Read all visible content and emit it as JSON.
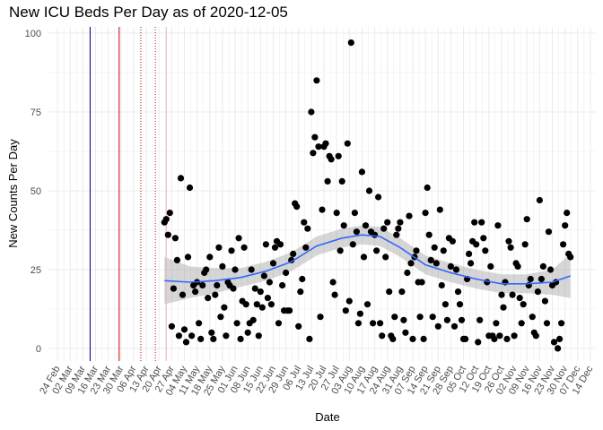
{
  "chart_data": {
    "type": "scatter",
    "title": "New ICU Beds Per Day as of 2020-12-05",
    "xlabel": "Date",
    "ylabel": "New Counts Per Day",
    "xlim": [
      "2020-02-19",
      "2020-12-17"
    ],
    "ylim": [
      -4,
      102
    ],
    "x_ticks": [
      "24 Feb",
      "02 Mar",
      "09 Mar",
      "16 Mar",
      "23 Mar",
      "30 Mar",
      "06 Apr",
      "13 Apr",
      "20 Apr",
      "27 Apr",
      "04 May",
      "11 May",
      "18 May",
      "25 May",
      "01 Jun",
      "08 Jun",
      "15 Jun",
      "22 Jun",
      "29 Jun",
      "06 Jul",
      "13 Jul",
      "20 Jul",
      "27 Jul",
      "03 Aug",
      "10 Aug",
      "17 Aug",
      "24 Aug",
      "31 Aug",
      "07 Sep",
      "14 Sep",
      "21 Sep",
      "28 Sep",
      "05 Oct",
      "12 Oct",
      "19 Oct",
      "26 Oct",
      "02 Nov",
      "09 Nov",
      "16 Nov",
      "23 Nov",
      "30 Nov",
      "07 Dec",
      "14 Dec"
    ],
    "x_tick_dates": [
      "2020-02-24",
      "2020-03-02",
      "2020-03-09",
      "2020-03-16",
      "2020-03-23",
      "2020-03-30",
      "2020-04-06",
      "2020-04-13",
      "2020-04-20",
      "2020-04-27",
      "2020-05-04",
      "2020-05-11",
      "2020-05-18",
      "2020-05-25",
      "2020-06-01",
      "2020-06-08",
      "2020-06-15",
      "2020-06-22",
      "2020-06-29",
      "2020-07-06",
      "2020-07-13",
      "2020-07-20",
      "2020-07-27",
      "2020-08-03",
      "2020-08-10",
      "2020-08-17",
      "2020-08-24",
      "2020-08-31",
      "2020-09-07",
      "2020-09-14",
      "2020-09-21",
      "2020-09-28",
      "2020-10-05",
      "2020-10-12",
      "2020-10-19",
      "2020-10-26",
      "2020-11-02",
      "2020-11-09",
      "2020-11-16",
      "2020-11-23",
      "2020-11-30",
      "2020-12-07",
      "2020-12-14"
    ],
    "y_ticks": [
      0,
      25,
      50,
      75,
      100
    ],
    "grid": true,
    "vlines": [
      {
        "date": "2020-03-13",
        "color": "#00008b",
        "style": "solid"
      },
      {
        "date": "2020-03-29",
        "color": "#cc0000",
        "style": "solid"
      },
      {
        "date": "2020-04-10",
        "color": "#cc0000",
        "style": "dotted"
      },
      {
        "date": "2020-04-18",
        "color": "#cc0000",
        "style": "dotted"
      },
      {
        "date": "2020-04-24",
        "color": "#f4b6b6",
        "style": "solid"
      }
    ],
    "points": [
      [
        "2020-04-23",
        40
      ],
      [
        "2020-04-24",
        41
      ],
      [
        "2020-04-25",
        36
      ],
      [
        "2020-04-26",
        43
      ],
      [
        "2020-04-27",
        7
      ],
      [
        "2020-04-28",
        19
      ],
      [
        "2020-04-29",
        35
      ],
      [
        "2020-04-30",
        28
      ],
      [
        "2020-05-01",
        4
      ],
      [
        "2020-05-02",
        54
      ],
      [
        "2020-05-03",
        17
      ],
      [
        "2020-05-04",
        6
      ],
      [
        "2020-05-05",
        2
      ],
      [
        "2020-05-06",
        29
      ],
      [
        "2020-05-07",
        51
      ],
      [
        "2020-05-08",
        4
      ],
      [
        "2020-05-09",
        20
      ],
      [
        "2020-05-10",
        18
      ],
      [
        "2020-05-11",
        21
      ],
      [
        "2020-05-12",
        8
      ],
      [
        "2020-05-13",
        3
      ],
      [
        "2020-05-14",
        20
      ],
      [
        "2020-05-15",
        24
      ],
      [
        "2020-05-16",
        25
      ],
      [
        "2020-05-17",
        16
      ],
      [
        "2020-05-18",
        29
      ],
      [
        "2020-05-19",
        5
      ],
      [
        "2020-05-20",
        3
      ],
      [
        "2020-05-21",
        17
      ],
      [
        "2020-05-22",
        20
      ],
      [
        "2020-05-23",
        32
      ],
      [
        "2020-05-24",
        10
      ],
      [
        "2020-05-25",
        26
      ],
      [
        "2020-05-26",
        13
      ],
      [
        "2020-05-27",
        4
      ],
      [
        "2020-05-28",
        21
      ],
      [
        "2020-05-29",
        20
      ],
      [
        "2020-05-30",
        31
      ],
      [
        "2020-05-31",
        19
      ],
      [
        "2020-06-01",
        25
      ],
      [
        "2020-06-02",
        8
      ],
      [
        "2020-06-03",
        35
      ],
      [
        "2020-06-04",
        3
      ],
      [
        "2020-06-05",
        15
      ],
      [
        "2020-06-06",
        32
      ],
      [
        "2020-06-07",
        14
      ],
      [
        "2020-06-08",
        5
      ],
      [
        "2020-06-09",
        8
      ],
      [
        "2020-06-10",
        25
      ],
      [
        "2020-06-11",
        9
      ],
      [
        "2020-06-12",
        19
      ],
      [
        "2020-06-13",
        14
      ],
      [
        "2020-06-14",
        4
      ],
      [
        "2020-06-15",
        18
      ],
      [
        "2020-06-16",
        13
      ],
      [
        "2020-06-17",
        23
      ],
      [
        "2020-06-18",
        33
      ],
      [
        "2020-06-19",
        16
      ],
      [
        "2020-06-20",
        21
      ],
      [
        "2020-06-21",
        14
      ],
      [
        "2020-06-22",
        27
      ],
      [
        "2020-06-23",
        32
      ],
      [
        "2020-06-24",
        34
      ],
      [
        "2020-06-25",
        8
      ],
      [
        "2020-06-26",
        33
      ],
      [
        "2020-06-27",
        20
      ],
      [
        "2020-06-28",
        12
      ],
      [
        "2020-06-29",
        24
      ],
      [
        "2020-06-30",
        12
      ],
      [
        "2020-07-01",
        12
      ],
      [
        "2020-07-02",
        28
      ],
      [
        "2020-07-03",
        30
      ],
      [
        "2020-07-04",
        46
      ],
      [
        "2020-07-05",
        45
      ],
      [
        "2020-07-06",
        7
      ],
      [
        "2020-07-07",
        18
      ],
      [
        "2020-07-08",
        22
      ],
      [
        "2020-07-09",
        40
      ],
      [
        "2020-07-10",
        32
      ],
      [
        "2020-07-11",
        38
      ],
      [
        "2020-07-12",
        3
      ],
      [
        "2020-07-13",
        75
      ],
      [
        "2020-07-14",
        62
      ],
      [
        "2020-07-15",
        67
      ],
      [
        "2020-07-16",
        85
      ],
      [
        "2020-07-17",
        64
      ],
      [
        "2020-07-18",
        10
      ],
      [
        "2020-07-19",
        44
      ],
      [
        "2020-07-20",
        64
      ],
      [
        "2020-07-21",
        65
      ],
      [
        "2020-07-22",
        53
      ],
      [
        "2020-07-23",
        61
      ],
      [
        "2020-07-24",
        60
      ],
      [
        "2020-07-25",
        21
      ],
      [
        "2020-07-26",
        17
      ],
      [
        "2020-07-27",
        43
      ],
      [
        "2020-07-28",
        61
      ],
      [
        "2020-07-29",
        31
      ],
      [
        "2020-07-30",
        53
      ],
      [
        "2020-07-31",
        39
      ],
      [
        "2020-08-01",
        12
      ],
      [
        "2020-08-02",
        65
      ],
      [
        "2020-08-03",
        15
      ],
      [
        "2020-08-04",
        97
      ],
      [
        "2020-08-05",
        33
      ],
      [
        "2020-08-06",
        43
      ],
      [
        "2020-08-07",
        37
      ],
      [
        "2020-08-08",
        8
      ],
      [
        "2020-08-09",
        11
      ],
      [
        "2020-08-10",
        56
      ],
      [
        "2020-08-11",
        29
      ],
      [
        "2020-08-12",
        39
      ],
      [
        "2020-08-13",
        14
      ],
      [
        "2020-08-14",
        50
      ],
      [
        "2020-08-15",
        37
      ],
      [
        "2020-08-16",
        8
      ],
      [
        "2020-08-17",
        36
      ],
      [
        "2020-08-18",
        31
      ],
      [
        "2020-08-19",
        48
      ],
      [
        "2020-08-20",
        8
      ],
      [
        "2020-08-21",
        4
      ],
      [
        "2020-08-22",
        38
      ],
      [
        "2020-08-23",
        29
      ],
      [
        "2020-08-24",
        40
      ],
      [
        "2020-08-25",
        18
      ],
      [
        "2020-08-26",
        4
      ],
      [
        "2020-08-27",
        3
      ],
      [
        "2020-08-28",
        10
      ],
      [
        "2020-08-29",
        36
      ],
      [
        "2020-08-30",
        38
      ],
      [
        "2020-08-31",
        40
      ],
      [
        "2020-09-01",
        18
      ],
      [
        "2020-09-02",
        9
      ],
      [
        "2020-09-03",
        5
      ],
      [
        "2020-09-04",
        24
      ],
      [
        "2020-09-05",
        42
      ],
      [
        "2020-09-06",
        27
      ],
      [
        "2020-09-07",
        3
      ],
      [
        "2020-09-08",
        29
      ],
      [
        "2020-09-09",
        31
      ],
      [
        "2020-09-10",
        21
      ],
      [
        "2020-09-11",
        10
      ],
      [
        "2020-09-12",
        21
      ],
      [
        "2020-09-13",
        3
      ],
      [
        "2020-09-14",
        43
      ],
      [
        "2020-09-15",
        51
      ],
      [
        "2020-09-16",
        36
      ],
      [
        "2020-09-17",
        28
      ],
      [
        "2020-09-18",
        10
      ],
      [
        "2020-09-19",
        32
      ],
      [
        "2020-09-20",
        27
      ],
      [
        "2020-09-21",
        7
      ],
      [
        "2020-09-22",
        44
      ],
      [
        "2020-09-23",
        20
      ],
      [
        "2020-09-24",
        31
      ],
      [
        "2020-09-25",
        14
      ],
      [
        "2020-09-26",
        9
      ],
      [
        "2020-09-27",
        35
      ],
      [
        "2020-09-28",
        26
      ],
      [
        "2020-09-29",
        34
      ],
      [
        "2020-09-30",
        7
      ],
      [
        "2020-10-01",
        25
      ],
      [
        "2020-10-02",
        18
      ],
      [
        "2020-10-03",
        14
      ],
      [
        "2020-10-04",
        9
      ],
      [
        "2020-10-05",
        3
      ],
      [
        "2020-10-06",
        3
      ],
      [
        "2020-10-07",
        22
      ],
      [
        "2020-10-08",
        30
      ],
      [
        "2020-10-09",
        27
      ],
      [
        "2020-10-10",
        34
      ],
      [
        "2020-10-11",
        40
      ],
      [
        "2020-10-12",
        33
      ],
      [
        "2020-10-13",
        2
      ],
      [
        "2020-10-14",
        9
      ],
      [
        "2020-10-15",
        40
      ],
      [
        "2020-10-16",
        35
      ],
      [
        "2020-10-17",
        31
      ],
      [
        "2020-10-18",
        21
      ],
      [
        "2020-10-19",
        4
      ],
      [
        "2020-10-20",
        26
      ],
      [
        "2020-10-21",
        4
      ],
      [
        "2020-10-22",
        3
      ],
      [
        "2020-10-23",
        8
      ],
      [
        "2020-10-24",
        39
      ],
      [
        "2020-10-25",
        4
      ],
      [
        "2020-10-26",
        17
      ],
      [
        "2020-10-27",
        13
      ],
      [
        "2020-10-28",
        21
      ],
      [
        "2020-10-29",
        3
      ],
      [
        "2020-10-30",
        34
      ],
      [
        "2020-10-31",
        32
      ],
      [
        "2020-11-01",
        17
      ],
      [
        "2020-11-02",
        4
      ],
      [
        "2020-11-03",
        27
      ],
      [
        "2020-11-04",
        26
      ],
      [
        "2020-11-05",
        16
      ],
      [
        "2020-11-06",
        8
      ],
      [
        "2020-11-07",
        14
      ],
      [
        "2020-11-08",
        33
      ],
      [
        "2020-11-09",
        41
      ],
      [
        "2020-11-10",
        20
      ],
      [
        "2020-11-11",
        22
      ],
      [
        "2020-11-12",
        10
      ],
      [
        "2020-11-13",
        5
      ],
      [
        "2020-11-14",
        4
      ],
      [
        "2020-11-15",
        18
      ],
      [
        "2020-11-16",
        47
      ],
      [
        "2020-11-17",
        22
      ],
      [
        "2020-11-18",
        26
      ],
      [
        "2020-11-19",
        15
      ],
      [
        "2020-11-20",
        8
      ],
      [
        "2020-11-21",
        37
      ],
      [
        "2020-11-22",
        25
      ],
      [
        "2020-11-23",
        20
      ],
      [
        "2020-11-24",
        2
      ],
      [
        "2020-11-25",
        21
      ],
      [
        "2020-11-26",
        0
      ],
      [
        "2020-11-27",
        3
      ],
      [
        "2020-11-28",
        8
      ],
      [
        "2020-11-29",
        33
      ],
      [
        "2020-11-30",
        39
      ],
      [
        "2020-12-01",
        43
      ],
      [
        "2020-12-02",
        30
      ],
      [
        "2020-12-03",
        29
      ]
    ],
    "smooth": [
      [
        "2020-04-23",
        21.5
      ],
      [
        "2020-05-07",
        21
      ],
      [
        "2020-05-21",
        21.5
      ],
      [
        "2020-06-04",
        22.5
      ],
      [
        "2020-06-18",
        24.5
      ],
      [
        "2020-07-02",
        27.5
      ],
      [
        "2020-07-16",
        32.5
      ],
      [
        "2020-07-30",
        35
      ],
      [
        "2020-08-10",
        36
      ],
      [
        "2020-08-20",
        35.5
      ],
      [
        "2020-08-31",
        32
      ],
      [
        "2020-09-14",
        26.5
      ],
      [
        "2020-09-28",
        24
      ],
      [
        "2020-10-12",
        22
      ],
      [
        "2020-10-26",
        20.5
      ],
      [
        "2020-11-09",
        20.5
      ],
      [
        "2020-11-23",
        21
      ],
      [
        "2020-12-03",
        23
      ]
    ],
    "band": [
      [
        "2020-04-23",
        14,
        29
      ],
      [
        "2020-05-07",
        16,
        26
      ],
      [
        "2020-05-21",
        17.5,
        25.5
      ],
      [
        "2020-06-04",
        19.5,
        25.5
      ],
      [
        "2020-06-18",
        21.5,
        27.5
      ],
      [
        "2020-07-02",
        24.5,
        30.5
      ],
      [
        "2020-07-16",
        29.5,
        35.5
      ],
      [
        "2020-07-30",
        32,
        38
      ],
      [
        "2020-08-10",
        33,
        39
      ],
      [
        "2020-08-20",
        32.5,
        38.5
      ],
      [
        "2020-08-31",
        29,
        35
      ],
      [
        "2020-09-14",
        23.5,
        29.5
      ],
      [
        "2020-09-28",
        21,
        27
      ],
      [
        "2020-10-12",
        19,
        25
      ],
      [
        "2020-10-26",
        17.5,
        23.5
      ],
      [
        "2020-11-09",
        17.5,
        23.5
      ],
      [
        "2020-11-23",
        17,
        25
      ],
      [
        "2020-12-03",
        16,
        30
      ]
    ],
    "colors": {
      "points": "#000000",
      "smooth_line": "#3366ff",
      "band": "#999999",
      "gridline": "#ebebeb"
    }
  }
}
